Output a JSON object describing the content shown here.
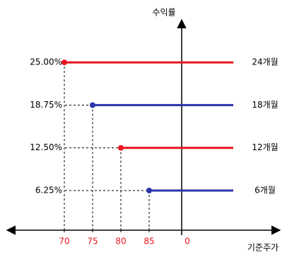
{
  "chart_data": {
    "type": "payoff",
    "y_axis_label": "수익률",
    "x_axis_label": "기준주가",
    "categories": [
      "24개월",
      "18개월",
      "12개월",
      "6개월"
    ],
    "x": [
      70,
      75,
      80,
      85
    ],
    "values": [
      25,
      18.75,
      12.5,
      6.25
    ],
    "value_labels": [
      "25.00%",
      "18.75%",
      "12.50%",
      "6.25%"
    ],
    "colors": [
      "#e8141e",
      "#2b35a8",
      "#e8141e",
      "#2b35a8"
    ],
    "xticks": [
      70,
      75,
      80,
      85,
      0
    ]
  }
}
